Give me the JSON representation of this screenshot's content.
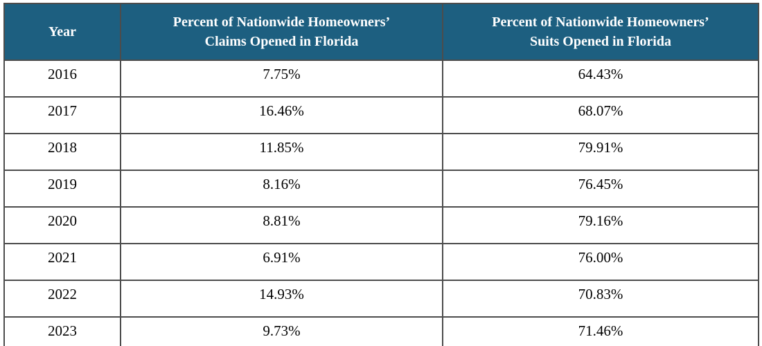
{
  "accent_color": "#1d5f80",
  "border_color": "#4c4c4c",
  "table": {
    "header": {
      "year": "Year",
      "claims_line1": "Percent of Nationwide Homeowners’",
      "claims_line2": "Claims Opened in Florida",
      "suits_line1": "Percent of Nationwide Homeowners’",
      "suits_line2": "Suits Opened in Florida"
    },
    "rows": [
      {
        "year": "2016",
        "claims": "7.75%",
        "suits": "64.43%"
      },
      {
        "year": "2017",
        "claims": "16.46%",
        "suits": "68.07%"
      },
      {
        "year": "2018",
        "claims": "11.85%",
        "suits": "79.91%"
      },
      {
        "year": "2019",
        "claims": "8.16%",
        "suits": "76.45%"
      },
      {
        "year": "2020",
        "claims": "8.81%",
        "suits": "79.16%"
      },
      {
        "year": "2021",
        "claims": "6.91%",
        "suits": "76.00%"
      },
      {
        "year": "2022",
        "claims": "14.93%",
        "suits": "70.83%"
      },
      {
        "year": "2023",
        "claims": "9.73%",
        "suits": "71.46%"
      }
    ]
  },
  "chart_data": {
    "type": "table",
    "columns": [
      "Year",
      "Percent of Nationwide Homeowners’ Claims Opened in Florida",
      "Percent of Nationwide Homeowners’ Suits Opened in Florida"
    ],
    "rows": [
      [
        "2016",
        "7.75%",
        "64.43%"
      ],
      [
        "2017",
        "16.46%",
        "68.07%"
      ],
      [
        "2018",
        "11.85%",
        "79.91%"
      ],
      [
        "2019",
        "8.16%",
        "76.45%"
      ],
      [
        "2020",
        "8.81%",
        "79.16%"
      ],
      [
        "2021",
        "6.91%",
        "76.00%"
      ],
      [
        "2022",
        "14.93%",
        "70.83%"
      ],
      [
        "2023",
        "9.73%",
        "71.46%"
      ]
    ],
    "claims_values_pct": [
      7.75,
      16.46,
      11.85,
      8.16,
      8.81,
      6.91,
      14.93,
      9.73
    ],
    "suits_values_pct": [
      64.43,
      68.07,
      79.91,
      76.45,
      79.16,
      76.0,
      70.83,
      71.46
    ],
    "header_background": "#1d5f80",
    "header_text_color": "#ffffff",
    "grid": true,
    "legend_position": "none"
  }
}
